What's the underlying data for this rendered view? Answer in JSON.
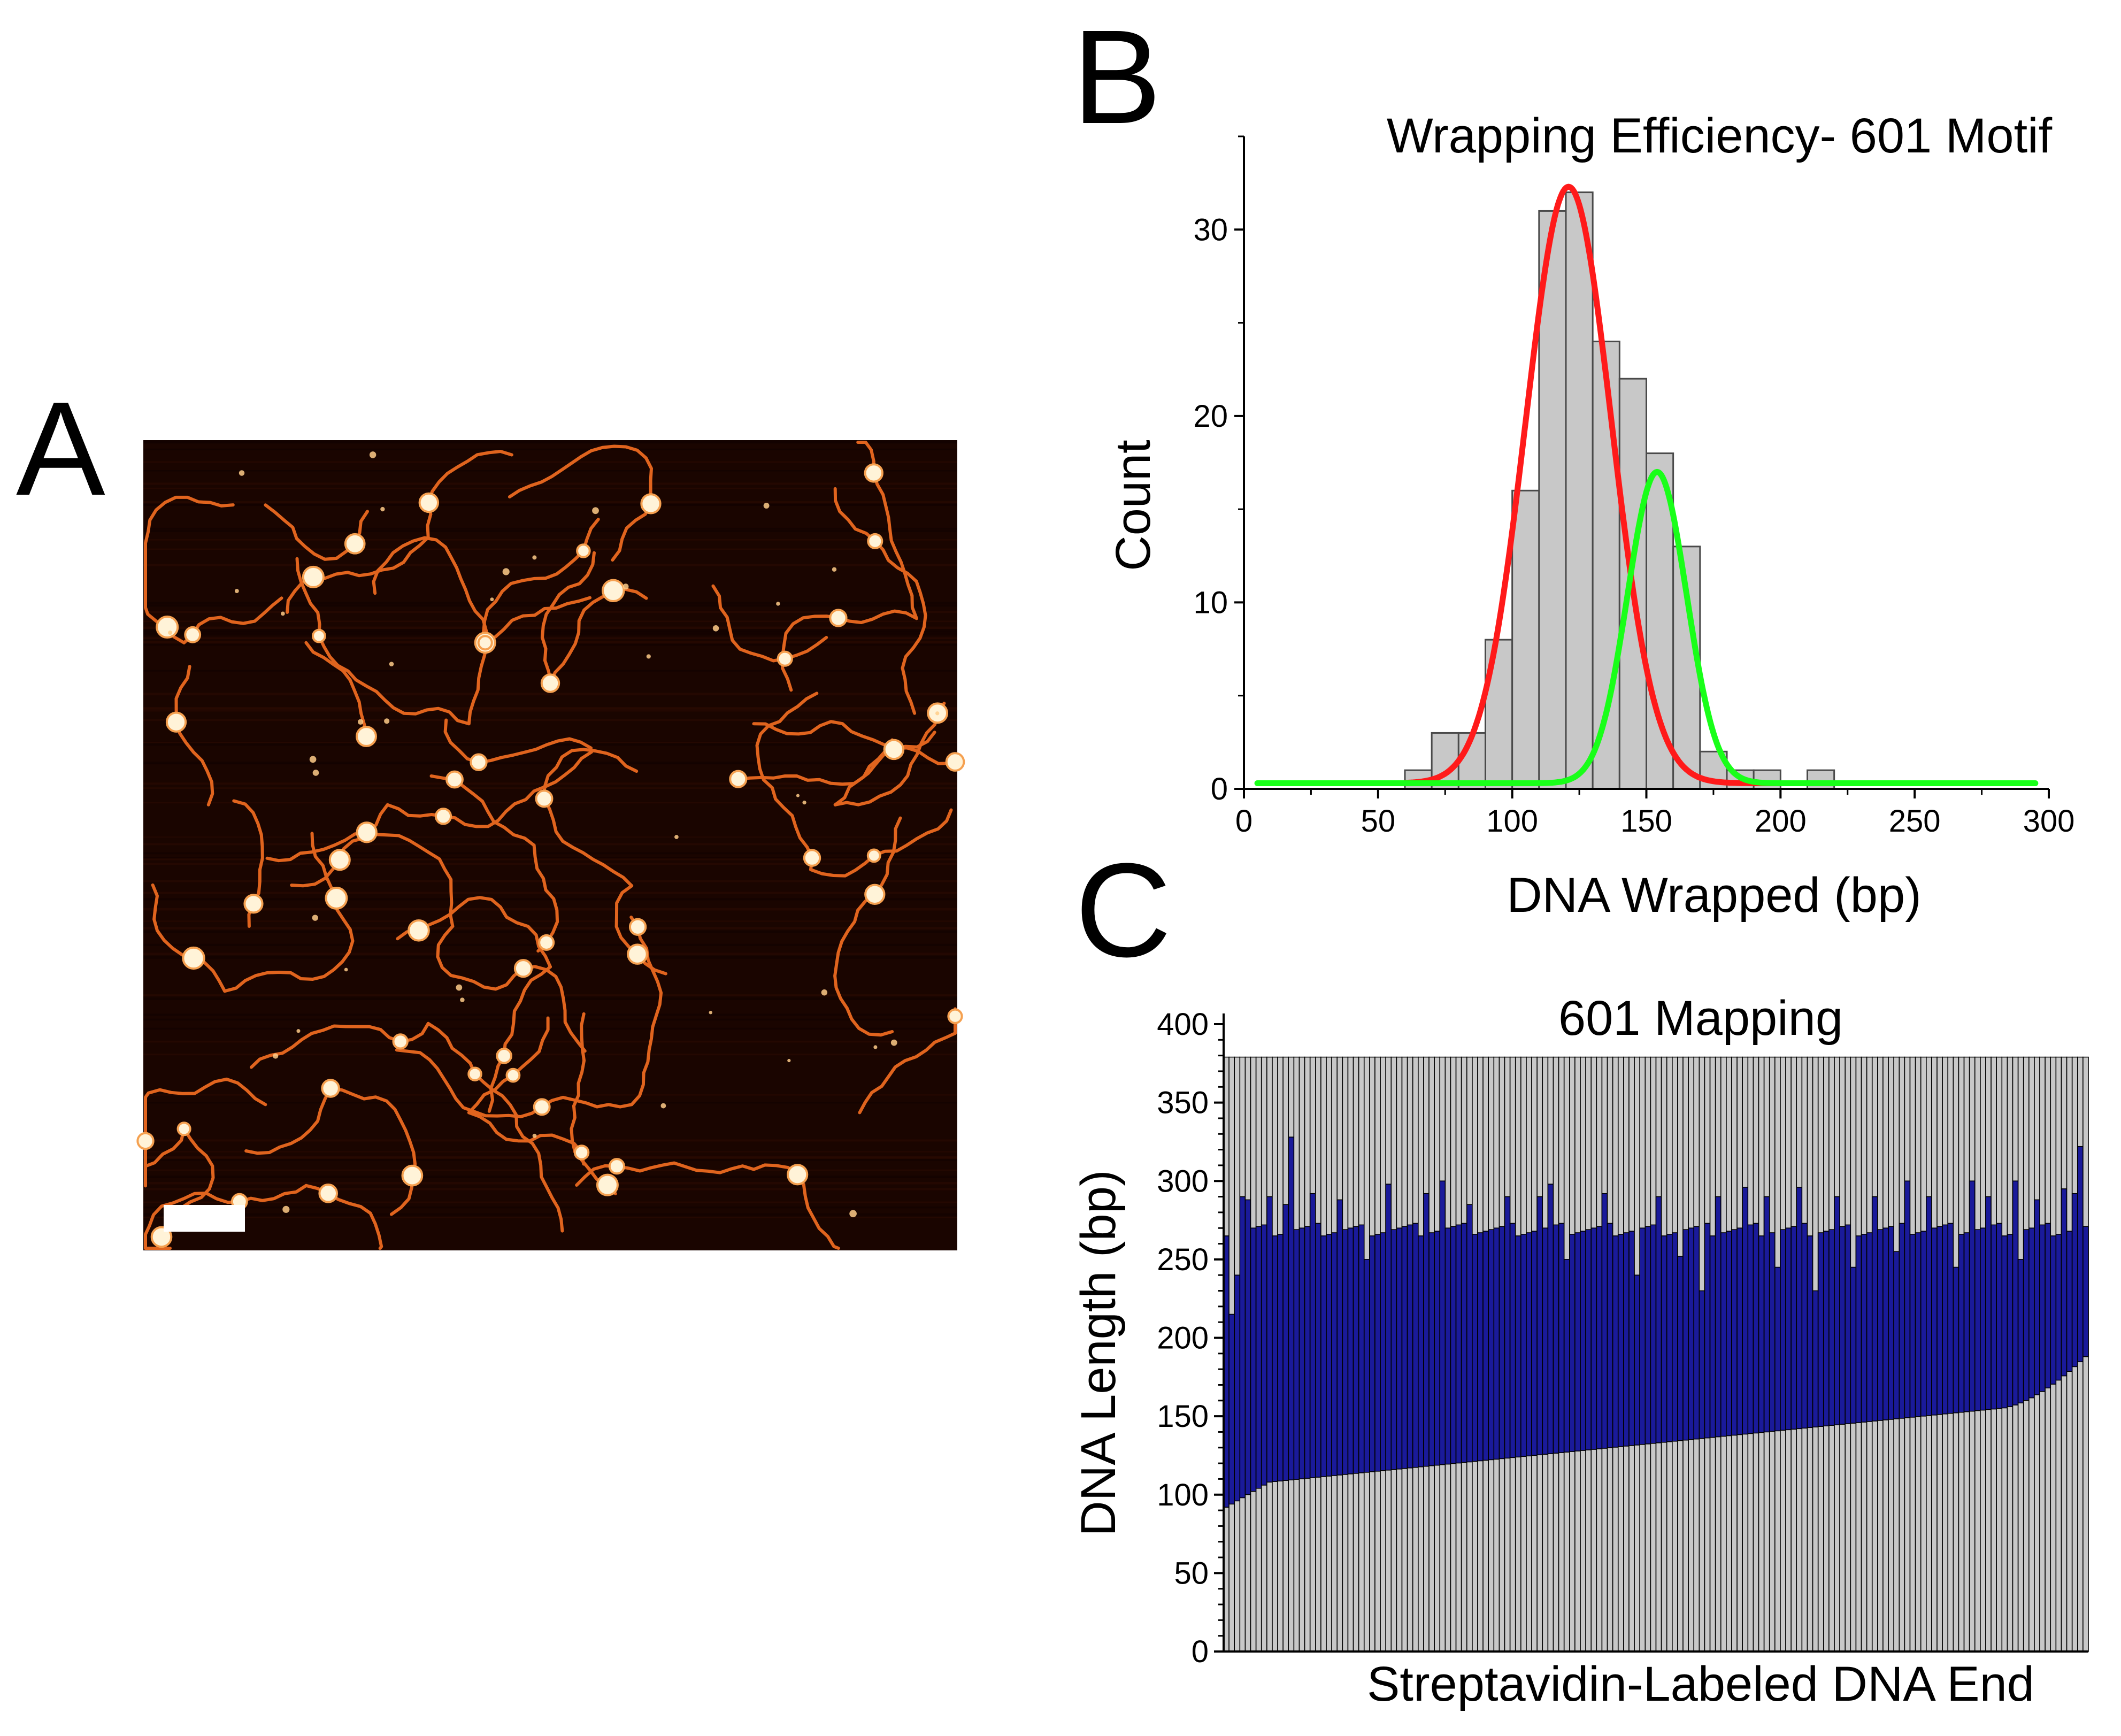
{
  "panels": {
    "a": {
      "letter": "A"
    },
    "b": {
      "letter": "B"
    },
    "c": {
      "letter": "C"
    }
  },
  "colors": {
    "afm_background": "#1a0500",
    "afm_strand": "#e0641e",
    "afm_particle": "#fff3d8",
    "scale_bar": "#ffffff",
    "hist_bar_fill": "#c8c8c8",
    "hist_bar_stroke": "#4a4a4a",
    "fit_red": "#ff1a1a",
    "fit_green": "#19ff19",
    "map_fill": "#1a1a9a",
    "map_stroke": "#000000",
    "map_gray": "#c8c8c8"
  },
  "chart_data": [
    {
      "id": "B",
      "type": "bar",
      "title": "Wrapping Efficiency- 601 Motif",
      "xlabel": "DNA Wrapped (bp)",
      "ylabel": "Count",
      "xlim": [
        0,
        300
      ],
      "ylim": [
        0,
        35
      ],
      "xticks": [
        0,
        50,
        100,
        150,
        200,
        250,
        300
      ],
      "yticks": [
        0,
        10,
        20,
        30
      ],
      "bin_width": 10,
      "bin_starts": [
        60,
        70,
        80,
        90,
        100,
        110,
        120,
        130,
        140,
        150,
        160,
        170,
        180,
        190,
        200,
        210
      ],
      "values": [
        1,
        3,
        3,
        8,
        16,
        31,
        32,
        24,
        22,
        18,
        13,
        2,
        1,
        1,
        0,
        1
      ],
      "fits": [
        {
          "name": "gaussian-1",
          "color": "red",
          "center": 121,
          "sigma": 16,
          "amplitude": 32,
          "baseline": 0.3,
          "range": [
            60,
            200
          ]
        },
        {
          "name": "gaussian-2",
          "color": "green",
          "center": 154,
          "sigma": 11,
          "amplitude": 16.7,
          "baseline": 0.3,
          "range": [
            5,
            295
          ]
        }
      ]
    },
    {
      "id": "C",
      "type": "bar",
      "title": "601 Mapping",
      "xlabel": "Streptavidin-Labeled DNA End",
      "ylabel": "DNA Length (bp)",
      "ylim": [
        0,
        400
      ],
      "yticks": [
        0,
        50,
        100,
        150,
        200,
        250,
        300,
        350,
        400
      ],
      "total_length": 379,
      "n_molecules": 160,
      "start_min": 92,
      "start_max": 188,
      "end_typical": 268,
      "end_outliers": [
        [
          1,
          215
        ],
        [
          2,
          240
        ],
        [
          3,
          290
        ],
        [
          4,
          288
        ],
        [
          8,
          290
        ],
        [
          11,
          285
        ],
        [
          16,
          292
        ],
        [
          21,
          288
        ],
        [
          26,
          250
        ],
        [
          30,
          298
        ],
        [
          37,
          292
        ],
        [
          45,
          285
        ],
        [
          52,
          290
        ],
        [
          58,
          290
        ],
        [
          63,
          250
        ],
        [
          70,
          292
        ],
        [
          76,
          240
        ],
        [
          80,
          290
        ],
        [
          84,
          252
        ],
        [
          88,
          230
        ],
        [
          91,
          290
        ],
        [
          96,
          250
        ],
        [
          100,
          290
        ],
        [
          102,
          245
        ],
        [
          109,
          230
        ],
        [
          113,
          290
        ],
        [
          116,
          245
        ],
        [
          120,
          290
        ],
        [
          124,
          255
        ],
        [
          130,
          290
        ],
        [
          135,
          245
        ],
        [
          141,
          290
        ],
        [
          147,
          250
        ],
        [
          150,
          288
        ],
        [
          155,
          245
        ],
        [
          157,
          292
        ],
        [
          12,
          328
        ],
        [
          40,
          300
        ],
        [
          60,
          298
        ],
        [
          96,
          296
        ],
        [
          106,
          296
        ],
        [
          126,
          300
        ],
        [
          138,
          300
        ],
        [
          146,
          300
        ],
        [
          155,
          295
        ],
        [
          158,
          322
        ]
      ]
    }
  ]
}
